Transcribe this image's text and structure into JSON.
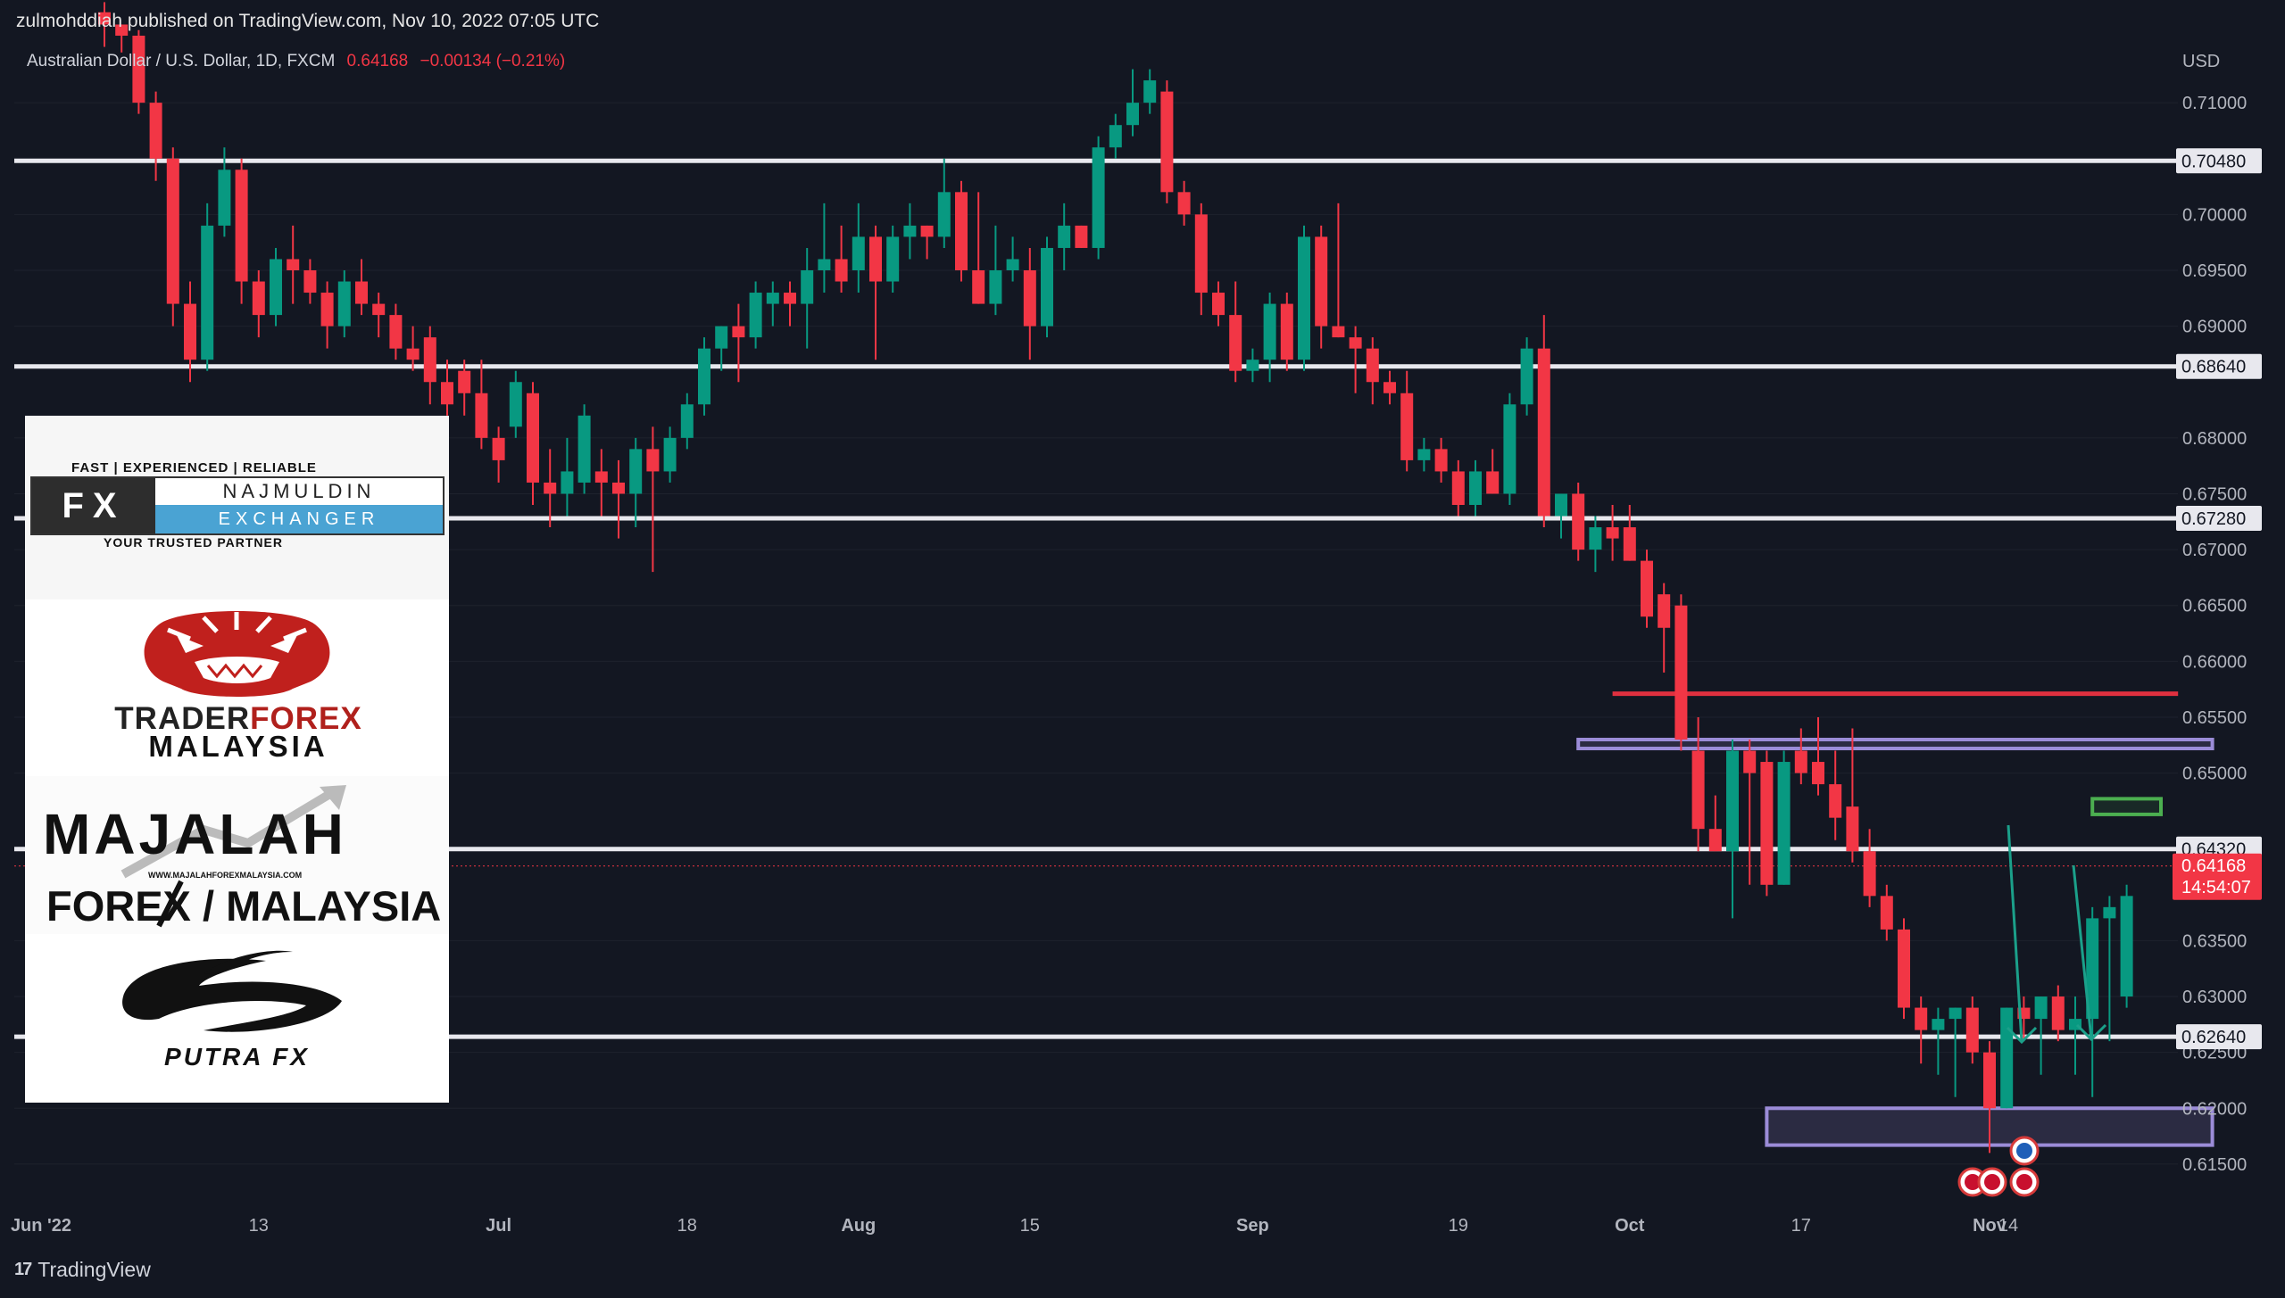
{
  "header": {
    "text": "zulmohddiah published on TradingView.com, Nov 10, 2022 07:05 UTC"
  },
  "symbol": {
    "name": "Australian Dollar / U.S. Dollar, 1D, FXCM",
    "price": "0.64168",
    "change": "−0.00134 (−0.21%)"
  },
  "footer": {
    "brand": "TradingView",
    "mark": "17"
  },
  "logos": {
    "fx_najmuldin": {
      "tagline_top": "FAST | EXPERIENCED | RELIABLE",
      "fx": "FX",
      "name": "NAJMULDIN",
      "sub": "EXCHANGER",
      "tagline_bottom": "YOUR TRUSTED PARTNER"
    },
    "trader_forex": {
      "line1a": "TRADER",
      "line1b": "FOREX",
      "line2": "MALAYSIA"
    },
    "majalah": {
      "line1": "MAJALAH",
      "url": "WWW.MAJALAHFOREXMALAYSIA.COM",
      "line2": "FOREX / MALAYSIA"
    },
    "putra": {
      "name": "PUTRA FX"
    }
  },
  "colors": {
    "up": "#089981",
    "down": "#f23645",
    "bg": "#131722",
    "level": "#e8e8ee",
    "zone": "#9b8cd8",
    "resistance": "#e0303f",
    "target_box": "#4caf50",
    "arrow": "#1ba08a"
  },
  "chart_data": {
    "type": "candlestick",
    "title": "Australian Dollar / U.S. Dollar, 1D, FXCM",
    "currency_label": "USD",
    "ylim": [
      0.611,
      0.716
    ],
    "price_ticks": [
      "0.71000",
      "0.70000",
      "0.69500",
      "0.69000",
      "0.68000",
      "0.67500",
      "0.67000",
      "0.66500",
      "0.66000",
      "0.65500",
      "0.65000",
      "0.63500",
      "0.63000",
      "0.62500",
      "0.62000",
      "0.61500"
    ],
    "x_ticks": [
      "Jun '22",
      "13",
      "Jul",
      "18",
      "Aug",
      "15",
      "Sep",
      "19",
      "Oct",
      "17",
      "Nov",
      "14"
    ],
    "levels": [
      {
        "price": 0.7048,
        "label": "0.70480"
      },
      {
        "price": 0.6864,
        "label": "0.68640"
      },
      {
        "price": 0.6728,
        "label": "0.67280"
      },
      {
        "price": 0.6432,
        "label": "0.64320"
      },
      {
        "price": 0.6264,
        "label": "0.62640"
      }
    ],
    "current_price": {
      "label": "0.64168",
      "countdown": "14:54:07"
    },
    "resistance_line": 0.6571,
    "zones": [
      {
        "name": "supply-zone",
        "top": 0.653,
        "bottom": 0.6522,
        "from": "Sep 28",
        "to": "Nov 18"
      },
      {
        "name": "demand-zone",
        "top": 0.62,
        "bottom": 0.6167,
        "from": "Oct 13",
        "to": "Nov 18"
      },
      {
        "name": "entry-box",
        "top": 0.6477,
        "bottom": 0.6463,
        "from": "Nov 9",
        "to": "Nov 15"
      }
    ],
    "candles": [
      {
        "d": "May 31",
        "o": 0.7181,
        "h": 0.719,
        "l": 0.715,
        "c": 0.717
      },
      {
        "d": "Jun 1",
        "o": 0.717,
        "h": 0.717,
        "l": 0.7145,
        "c": 0.716
      },
      {
        "d": "Jun 2",
        "o": 0.716,
        "h": 0.7165,
        "l": 0.709,
        "c": 0.71
      },
      {
        "d": "Jun 3",
        "o": 0.71,
        "h": 0.711,
        "l": 0.703,
        "c": 0.705
      },
      {
        "d": "Jun 6",
        "o": 0.705,
        "h": 0.706,
        "l": 0.69,
        "c": 0.692
      },
      {
        "d": "Jun 7",
        "o": 0.692,
        "h": 0.694,
        "l": 0.685,
        "c": 0.687
      },
      {
        "d": "Jun 8",
        "o": 0.687,
        "h": 0.701,
        "l": 0.686,
        "c": 0.699
      },
      {
        "d": "Jun 9",
        "o": 0.699,
        "h": 0.706,
        "l": 0.698,
        "c": 0.704
      },
      {
        "d": "Jun 10",
        "o": 0.704,
        "h": 0.705,
        "l": 0.692,
        "c": 0.694
      },
      {
        "d": "Jun 13",
        "o": 0.694,
        "h": 0.695,
        "l": 0.689,
        "c": 0.691
      },
      {
        "d": "Jun 14",
        "o": 0.691,
        "h": 0.697,
        "l": 0.69,
        "c": 0.696
      },
      {
        "d": "Jun 15",
        "o": 0.696,
        "h": 0.699,
        "l": 0.692,
        "c": 0.695
      },
      {
        "d": "Jun 16",
        "o": 0.695,
        "h": 0.696,
        "l": 0.692,
        "c": 0.693
      },
      {
        "d": "Jun 17",
        "o": 0.693,
        "h": 0.694,
        "l": 0.688,
        "c": 0.69
      },
      {
        "d": "Jun 20",
        "o": 0.69,
        "h": 0.695,
        "l": 0.689,
        "c": 0.694
      },
      {
        "d": "Jun 21",
        "o": 0.694,
        "h": 0.696,
        "l": 0.691,
        "c": 0.692
      },
      {
        "d": "Jun 22",
        "o": 0.692,
        "h": 0.693,
        "l": 0.689,
        "c": 0.691
      },
      {
        "d": "Jun 23",
        "o": 0.691,
        "h": 0.692,
        "l": 0.687,
        "c": 0.688
      },
      {
        "d": "Jun 24",
        "o": 0.688,
        "h": 0.69,
        "l": 0.686,
        "c": 0.687
      },
      {
        "d": "Jun 27",
        "o": 0.689,
        "h": 0.69,
        "l": 0.683,
        "c": 0.685
      },
      {
        "d": "Jun 28",
        "o": 0.685,
        "h": 0.687,
        "l": 0.682,
        "c": 0.683
      },
      {
        "d": "Jun 29",
        "o": 0.686,
        "h": 0.687,
        "l": 0.682,
        "c": 0.684
      },
      {
        "d": "Jun 30",
        "o": 0.684,
        "h": 0.687,
        "l": 0.679,
        "c": 0.68
      },
      {
        "d": "Jul 1",
        "o": 0.68,
        "h": 0.681,
        "l": 0.676,
        "c": 0.678
      },
      {
        "d": "Jul 4",
        "o": 0.681,
        "h": 0.686,
        "l": 0.68,
        "c": 0.685
      },
      {
        "d": "Jul 5",
        "o": 0.684,
        "h": 0.685,
        "l": 0.674,
        "c": 0.676
      },
      {
        "d": "Jul 6",
        "o": 0.676,
        "h": 0.679,
        "l": 0.672,
        "c": 0.675
      },
      {
        "d": "Jul 7",
        "o": 0.675,
        "h": 0.68,
        "l": 0.673,
        "c": 0.677
      },
      {
        "d": "Jul 8",
        "o": 0.676,
        "h": 0.683,
        "l": 0.675,
        "c": 0.682
      },
      {
        "d": "Jul 11",
        "o": 0.677,
        "h": 0.679,
        "l": 0.673,
        "c": 0.676
      },
      {
        "d": "Jul 12",
        "o": 0.676,
        "h": 0.678,
        "l": 0.671,
        "c": 0.675
      },
      {
        "d": "Jul 13",
        "o": 0.675,
        "h": 0.68,
        "l": 0.672,
        "c": 0.679
      },
      {
        "d": "Jul 14",
        "o": 0.679,
        "h": 0.681,
        "l": 0.668,
        "c": 0.677
      },
      {
        "d": "Jul 15",
        "o": 0.677,
        "h": 0.681,
        "l": 0.676,
        "c": 0.68
      },
      {
        "d": "Jul 18",
        "o": 0.68,
        "h": 0.684,
        "l": 0.679,
        "c": 0.683
      },
      {
        "d": "Jul 19",
        "o": 0.683,
        "h": 0.689,
        "l": 0.682,
        "c": 0.688
      },
      {
        "d": "Jul 20",
        "o": 0.688,
        "h": 0.69,
        "l": 0.686,
        "c": 0.69
      },
      {
        "d": "Jul 21",
        "o": 0.69,
        "h": 0.692,
        "l": 0.685,
        "c": 0.689
      },
      {
        "d": "Jul 22",
        "o": 0.689,
        "h": 0.694,
        "l": 0.688,
        "c": 0.693
      },
      {
        "d": "Jul 25",
        "o": 0.692,
        "h": 0.694,
        "l": 0.69,
        "c": 0.693
      },
      {
        "d": "Jul 26",
        "o": 0.693,
        "h": 0.694,
        "l": 0.69,
        "c": 0.692
      },
      {
        "d": "Jul 27",
        "o": 0.692,
        "h": 0.697,
        "l": 0.688,
        "c": 0.695
      },
      {
        "d": "Jul 28",
        "o": 0.695,
        "h": 0.701,
        "l": 0.693,
        "c": 0.696
      },
      {
        "d": "Jul 29",
        "o": 0.696,
        "h": 0.699,
        "l": 0.693,
        "c": 0.694
      },
      {
        "d": "Aug 1",
        "o": 0.695,
        "h": 0.701,
        "l": 0.693,
        "c": 0.698
      },
      {
        "d": "Aug 2",
        "o": 0.698,
        "h": 0.699,
        "l": 0.687,
        "c": 0.694
      },
      {
        "d": "Aug 3",
        "o": 0.694,
        "h": 0.699,
        "l": 0.693,
        "c": 0.698
      },
      {
        "d": "Aug 4",
        "o": 0.698,
        "h": 0.701,
        "l": 0.696,
        "c": 0.699
      },
      {
        "d": "Aug 5",
        "o": 0.699,
        "h": 0.699,
        "l": 0.696,
        "c": 0.698
      },
      {
        "d": "Aug 8",
        "o": 0.698,
        "h": 0.705,
        "l": 0.697,
        "c": 0.702
      },
      {
        "d": "Aug 9",
        "o": 0.702,
        "h": 0.703,
        "l": 0.694,
        "c": 0.695
      },
      {
        "d": "Aug 10",
        "o": 0.695,
        "h": 0.702,
        "l": 0.692,
        "c": 0.692
      },
      {
        "d": "Aug 11",
        "o": 0.692,
        "h": 0.699,
        "l": 0.691,
        "c": 0.695
      },
      {
        "d": "Aug 12",
        "o": 0.695,
        "h": 0.698,
        "l": 0.694,
        "c": 0.696
      },
      {
        "d": "Aug 15",
        "o": 0.695,
        "h": 0.697,
        "l": 0.687,
        "c": 0.69
      },
      {
        "d": "Aug 16",
        "o": 0.69,
        "h": 0.698,
        "l": 0.689,
        "c": 0.697
      },
      {
        "d": "Aug 17",
        "o": 0.697,
        "h": 0.701,
        "l": 0.695,
        "c": 0.699
      },
      {
        "d": "Aug 18",
        "o": 0.699,
        "h": 0.699,
        "l": 0.697,
        "c": 0.697
      },
      {
        "d": "Aug 19",
        "o": 0.697,
        "h": 0.707,
        "l": 0.696,
        "c": 0.706
      },
      {
        "d": "Aug 22",
        "o": 0.706,
        "h": 0.709,
        "l": 0.705,
        "c": 0.708
      },
      {
        "d": "Aug 23",
        "o": 0.708,
        "h": 0.713,
        "l": 0.707,
        "c": 0.71
      },
      {
        "d": "Aug 24",
        "o": 0.71,
        "h": 0.713,
        "l": 0.709,
        "c": 0.712
      },
      {
        "d": "Aug 25",
        "o": 0.711,
        "h": 0.712,
        "l": 0.701,
        "c": 0.702
      },
      {
        "d": "Aug 26",
        "o": 0.702,
        "h": 0.703,
        "l": 0.699,
        "c": 0.7
      },
      {
        "d": "Aug 29",
        "o": 0.7,
        "h": 0.701,
        "l": 0.691,
        "c": 0.693
      },
      {
        "d": "Aug 30",
        "o": 0.693,
        "h": 0.694,
        "l": 0.69,
        "c": 0.691
      },
      {
        "d": "Aug 31",
        "o": 0.691,
        "h": 0.694,
        "l": 0.685,
        "c": 0.686
      },
      {
        "d": "Sep 1",
        "o": 0.686,
        "h": 0.688,
        "l": 0.685,
        "c": 0.687
      },
      {
        "d": "Sep 2",
        "o": 0.687,
        "h": 0.693,
        "l": 0.685,
        "c": 0.692
      },
      {
        "d": "Sep 5",
        "o": 0.692,
        "h": 0.693,
        "l": 0.686,
        "c": 0.687
      },
      {
        "d": "Sep 6",
        "o": 0.687,
        "h": 0.699,
        "l": 0.686,
        "c": 0.698
      },
      {
        "d": "Sep 7",
        "o": 0.698,
        "h": 0.699,
        "l": 0.688,
        "c": 0.69
      },
      {
        "d": "Sep 8",
        "o": 0.69,
        "h": 0.701,
        "l": 0.689,
        "c": 0.689
      },
      {
        "d": "Sep 9",
        "o": 0.689,
        "h": 0.69,
        "l": 0.684,
        "c": 0.688
      },
      {
        "d": "Sep 12",
        "o": 0.688,
        "h": 0.689,
        "l": 0.683,
        "c": 0.685
      },
      {
        "d": "Sep 13",
        "o": 0.685,
        "h": 0.686,
        "l": 0.683,
        "c": 0.684
      },
      {
        "d": "Sep 14",
        "o": 0.684,
        "h": 0.686,
        "l": 0.677,
        "c": 0.678
      },
      {
        "d": "Sep 15",
        "o": 0.678,
        "h": 0.68,
        "l": 0.677,
        "c": 0.679
      },
      {
        "d": "Sep 16",
        "o": 0.679,
        "h": 0.68,
        "l": 0.676,
        "c": 0.677
      },
      {
        "d": "Sep 19",
        "o": 0.677,
        "h": 0.678,
        "l": 0.673,
        "c": 0.674
      },
      {
        "d": "Sep 20",
        "o": 0.674,
        "h": 0.678,
        "l": 0.673,
        "c": 0.677
      },
      {
        "d": "Sep 21",
        "o": 0.677,
        "h": 0.679,
        "l": 0.675,
        "c": 0.675
      },
      {
        "d": "Sep 22",
        "o": 0.675,
        "h": 0.684,
        "l": 0.674,
        "c": 0.683
      },
      {
        "d": "Sep 23",
        "o": 0.683,
        "h": 0.689,
        "l": 0.682,
        "c": 0.688
      },
      {
        "d": "Sep 26",
        "o": 0.688,
        "h": 0.691,
        "l": 0.672,
        "c": 0.673
      },
      {
        "d": "Sep 27",
        "o": 0.673,
        "h": 0.675,
        "l": 0.671,
        "c": 0.675
      },
      {
        "d": "Sep 28",
        "o": 0.675,
        "h": 0.676,
        "l": 0.669,
        "c": 0.67
      },
      {
        "d": "Sep 29",
        "o": 0.67,
        "h": 0.673,
        "l": 0.668,
        "c": 0.672
      },
      {
        "d": "Sep 30",
        "o": 0.672,
        "h": 0.674,
        "l": 0.669,
        "c": 0.671
      },
      {
        "d": "Oct 3",
        "o": 0.672,
        "h": 0.674,
        "l": 0.669,
        "c": 0.669
      },
      {
        "d": "Oct 4",
        "o": 0.669,
        "h": 0.67,
        "l": 0.663,
        "c": 0.664
      },
      {
        "d": "Oct 5",
        "o": 0.666,
        "h": 0.667,
        "l": 0.659,
        "c": 0.663
      },
      {
        "d": "Oct 6",
        "o": 0.665,
        "h": 0.666,
        "l": 0.652,
        "c": 0.653
      },
      {
        "d": "Oct 7",
        "o": 0.652,
        "h": 0.655,
        "l": 0.643,
        "c": 0.645
      },
      {
        "d": "Oct 10",
        "o": 0.645,
        "h": 0.648,
        "l": 0.643,
        "c": 0.643
      },
      {
        "d": "Oct 11",
        "o": 0.643,
        "h": 0.653,
        "l": 0.637,
        "c": 0.652
      },
      {
        "d": "Oct 12",
        "o": 0.652,
        "h": 0.653,
        "l": 0.64,
        "c": 0.65
      },
      {
        "d": "Oct 13",
        "o": 0.651,
        "h": 0.652,
        "l": 0.639,
        "c": 0.64
      },
      {
        "d": "Oct 14",
        "o": 0.64,
        "h": 0.652,
        "l": 0.64,
        "c": 0.651
      },
      {
        "d": "Oct 17",
        "o": 0.652,
        "h": 0.654,
        "l": 0.649,
        "c": 0.65
      },
      {
        "d": "Oct 18",
        "o": 0.651,
        "h": 0.655,
        "l": 0.648,
        "c": 0.649
      },
      {
        "d": "Oct 19",
        "o": 0.649,
        "h": 0.652,
        "l": 0.644,
        "c": 0.646
      },
      {
        "d": "Oct 20",
        "o": 0.647,
        "h": 0.654,
        "l": 0.642,
        "c": 0.643
      },
      {
        "d": "Oct 21",
        "o": 0.643,
        "h": 0.645,
        "l": 0.638,
        "c": 0.639
      },
      {
        "d": "Oct 24",
        "o": 0.639,
        "h": 0.64,
        "l": 0.635,
        "c": 0.636
      },
      {
        "d": "Oct 25",
        "o": 0.636,
        "h": 0.637,
        "l": 0.628,
        "c": 0.629
      },
      {
        "d": "Oct 26",
        "o": 0.629,
        "h": 0.63,
        "l": 0.624,
        "c": 0.627
      },
      {
        "d": "Oct 27",
        "o": 0.627,
        "h": 0.629,
        "l": 0.623,
        "c": 0.628
      },
      {
        "d": "Oct 28",
        "o": 0.628,
        "h": 0.629,
        "l": 0.621,
        "c": 0.629
      },
      {
        "d": "Oct 31",
        "o": 0.629,
        "h": 0.63,
        "l": 0.624,
        "c": 0.625
      },
      {
        "d": "Nov 1",
        "o": 0.625,
        "h": 0.626,
        "l": 0.616,
        "c": 0.62
      },
      {
        "d": "Nov 2",
        "o": 0.62,
        "h": 0.629,
        "l": 0.62,
        "c": 0.629
      },
      {
        "d": "Nov 3",
        "o": 0.629,
        "h": 0.63,
        "l": 0.626,
        "c": 0.628
      },
      {
        "d": "Nov 4",
        "o": 0.628,
        "h": 0.63,
        "l": 0.623,
        "c": 0.63
      },
      {
        "d": "Nov 7",
        "o": 0.63,
        "h": 0.631,
        "l": 0.626,
        "c": 0.627
      },
      {
        "d": "Nov 8",
        "o": 0.627,
        "h": 0.63,
        "l": 0.623,
        "c": 0.628
      },
      {
        "d": "Nov 9",
        "o": 0.628,
        "h": 0.638,
        "l": 0.621,
        "c": 0.637
      },
      {
        "d": "Nov 10",
        "o": 0.637,
        "h": 0.639,
        "l": 0.626,
        "c": 0.638
      },
      {
        "d": "Nov 11",
        "o": 0.63,
        "h": 0.64,
        "l": 0.629,
        "c": 0.639
      }
    ]
  }
}
